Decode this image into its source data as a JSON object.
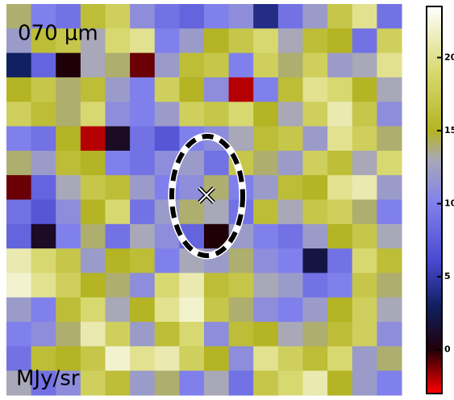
{
  "chart_data": {
    "type": "heatmap",
    "title": "070 μm",
    "unit_label": "MJy/sr",
    "z": [
      [
        14,
        10,
        9,
        16,
        18,
        11,
        9,
        8,
        10,
        11,
        4,
        9,
        12,
        17,
        20,
        9
      ],
      [
        12,
        16,
        17,
        13,
        19,
        20,
        10,
        12,
        15,
        17,
        19,
        13,
        16,
        15,
        9,
        18
      ],
      [
        3,
        8,
        0,
        13,
        14,
        -1,
        12,
        16,
        17,
        10,
        18,
        14,
        18,
        12,
        13,
        20
      ],
      [
        15,
        17,
        14,
        16,
        12,
        10,
        18,
        15,
        11,
        -2,
        10,
        16,
        20,
        19,
        15,
        13
      ],
      [
        18,
        16,
        14,
        19,
        11,
        10,
        12,
        18,
        17,
        19,
        15,
        13,
        18,
        21,
        17,
        11
      ],
      [
        10,
        9,
        15,
        -2,
        1,
        9,
        7,
        10,
        11,
        13,
        16,
        17,
        12,
        20,
        18,
        14
      ],
      [
        14,
        12,
        16,
        15,
        10,
        9,
        11,
        12,
        9,
        17,
        14,
        12,
        18,
        16,
        13,
        19
      ],
      [
        -1,
        8,
        13,
        17,
        16,
        12,
        10,
        11,
        14,
        10,
        12,
        16,
        15,
        20,
        21,
        12
      ],
      [
        9,
        7,
        11,
        15,
        19,
        9,
        12,
        14,
        13,
        9,
        16,
        13,
        17,
        18,
        14,
        10
      ],
      [
        8,
        1,
        10,
        14,
        9,
        13,
        11,
        8,
        0,
        12,
        10,
        9,
        12,
        15,
        17,
        13
      ],
      [
        21,
        19,
        17,
        12,
        15,
        16,
        10,
        13,
        12,
        14,
        11,
        10,
        2,
        9,
        19,
        16
      ],
      [
        22,
        20,
        18,
        15,
        14,
        11,
        19,
        21,
        16,
        17,
        13,
        12,
        9,
        10,
        17,
        14
      ],
      [
        12,
        10,
        16,
        19,
        13,
        15,
        20,
        22,
        17,
        14,
        11,
        10,
        12,
        15,
        18,
        13
      ],
      [
        10,
        11,
        14,
        21,
        18,
        12,
        16,
        19,
        11,
        16,
        15,
        13,
        14,
        16,
        18,
        11
      ],
      [
        9,
        16,
        15,
        17,
        22,
        20,
        21,
        18,
        15,
        11,
        20,
        18,
        16,
        19,
        12,
        14
      ],
      [
        13,
        9,
        11,
        18,
        16,
        12,
        14,
        10,
        13,
        9,
        17,
        19,
        21,
        15,
        12,
        10
      ]
    ],
    "zlim": [
      -3,
      23.5
    ],
    "zticks": [
      0,
      5,
      10,
      15,
      20
    ],
    "colormap": [
      {
        "value": -3,
        "color": "#ff0000"
      },
      {
        "value": 0,
        "color": "#200008"
      },
      {
        "value": 3,
        "color": "#102060"
      },
      {
        "value": 6,
        "color": "#4848d0"
      },
      {
        "value": 10,
        "color": "#8080ec"
      },
      {
        "value": 13,
        "color": "#a8a8b8"
      },
      {
        "value": 15,
        "color": "#b4b424"
      },
      {
        "value": 19,
        "color": "#d8d870"
      },
      {
        "value": 23.5,
        "color": "#ffffff"
      }
    ]
  }
}
